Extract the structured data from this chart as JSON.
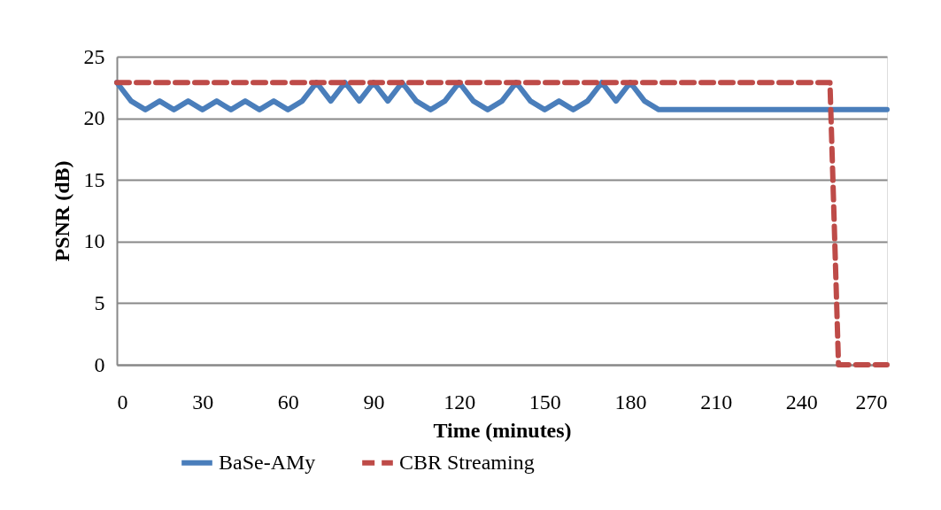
{
  "chart_data": {
    "type": "line",
    "xlabel": "Time (minutes)",
    "ylabel": "PSNR (dB)",
    "xlim": [
      0,
      270
    ],
    "xticks": [
      0,
      30,
      60,
      90,
      120,
      150,
      180,
      210,
      240,
      270
    ],
    "ylim": [
      0,
      25
    ],
    "yticks": [
      0,
      5,
      10,
      15,
      20,
      25
    ],
    "grid": "y",
    "legend": "bottom",
    "marker": "none",
    "series": [
      {
        "name": "BaSe-AMy",
        "color": "#4a7ebb",
        "line_style": "solid",
        "x": [
          0,
          5,
          10,
          15,
          20,
          25,
          30,
          35,
          40,
          45,
          50,
          55,
          60,
          65,
          70,
          75,
          80,
          85,
          90,
          95,
          100,
          105,
          110,
          115,
          120,
          125,
          130,
          135,
          140,
          145,
          150,
          155,
          160,
          165,
          170,
          175,
          180,
          185,
          190,
          270
        ],
        "values": [
          22.9,
          21.4,
          20.7,
          21.4,
          20.7,
          21.4,
          20.7,
          21.4,
          20.7,
          21.4,
          20.7,
          21.4,
          20.7,
          21.4,
          22.9,
          21.4,
          22.9,
          21.4,
          22.9,
          21.4,
          22.9,
          21.4,
          20.7,
          21.4,
          22.9,
          21.4,
          20.7,
          21.4,
          22.9,
          21.4,
          20.7,
          21.4,
          20.7,
          21.4,
          22.9,
          21.4,
          22.9,
          21.4,
          20.7,
          20.7
        ]
      },
      {
        "name": "CBR Streaming",
        "color": "#be4b48",
        "line_style": "dashed",
        "x": [
          0,
          250,
          253,
          270
        ],
        "values": [
          22.9,
          22.9,
          0,
          0
        ]
      }
    ]
  }
}
